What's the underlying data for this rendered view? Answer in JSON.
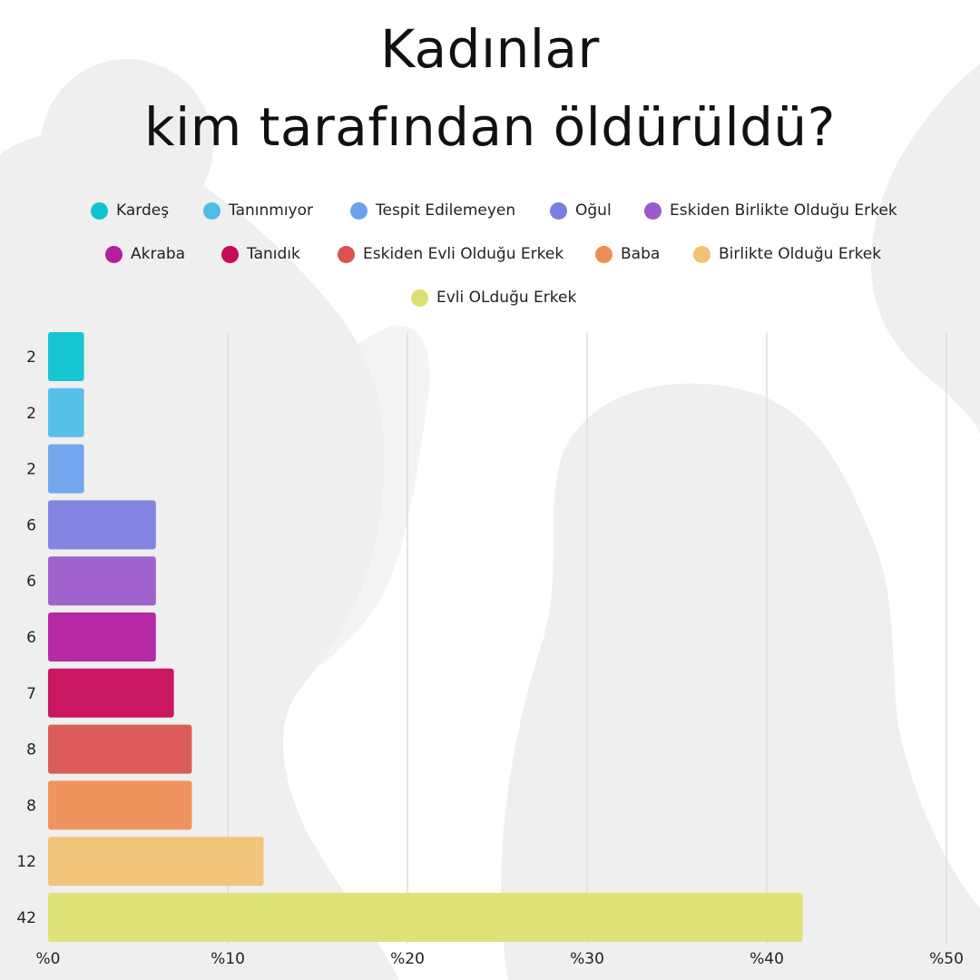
{
  "title_lines": [
    "Kadınlar",
    "kim  tarafından öldürüldü?"
  ],
  "chart_data": {
    "type": "bar",
    "orientation": "horizontal",
    "title": "Kadınlar kim  tarafından öldürüldü?",
    "categories": [
      "Kardeş",
      "Tanınmıyor",
      "Tespit Edilemeyen",
      "Oğul",
      "Eskiden Birlikte Olduğu Erkek",
      "Akraba",
      "Tanıdık",
      "Eskiden Evli Olduğu Erkek",
      "Baba",
      "Birlikte Olduğu Erkek",
      "Evli OLduğu Erkek"
    ],
    "values": [
      2,
      2,
      2,
      6,
      6,
      6,
      7,
      8,
      8,
      12,
      42
    ],
    "value_labels": [
      "2",
      "2",
      "2",
      "6",
      "6",
      "6",
      "7",
      "8",
      "8",
      "12",
      "42"
    ],
    "colors": [
      "#0bc3d2",
      "#4dbdea",
      "#6aa2ec",
      "#7b7fe0",
      "#9b5ac8",
      "#b31ea0",
      "#c80a5a",
      "#d9534f",
      "#ee8e55",
      "#f2c275",
      "#dde070"
    ],
    "xlim": [
      0,
      50
    ],
    "xticks": [
      0,
      10,
      20,
      30,
      40,
      50
    ],
    "xtick_labels": [
      "%0",
      "%10",
      "%20",
      "%30",
      "%40",
      "%50"
    ],
    "xlabel": "",
    "ylabel": "",
    "grid": "vertical",
    "legend_position": "top"
  }
}
